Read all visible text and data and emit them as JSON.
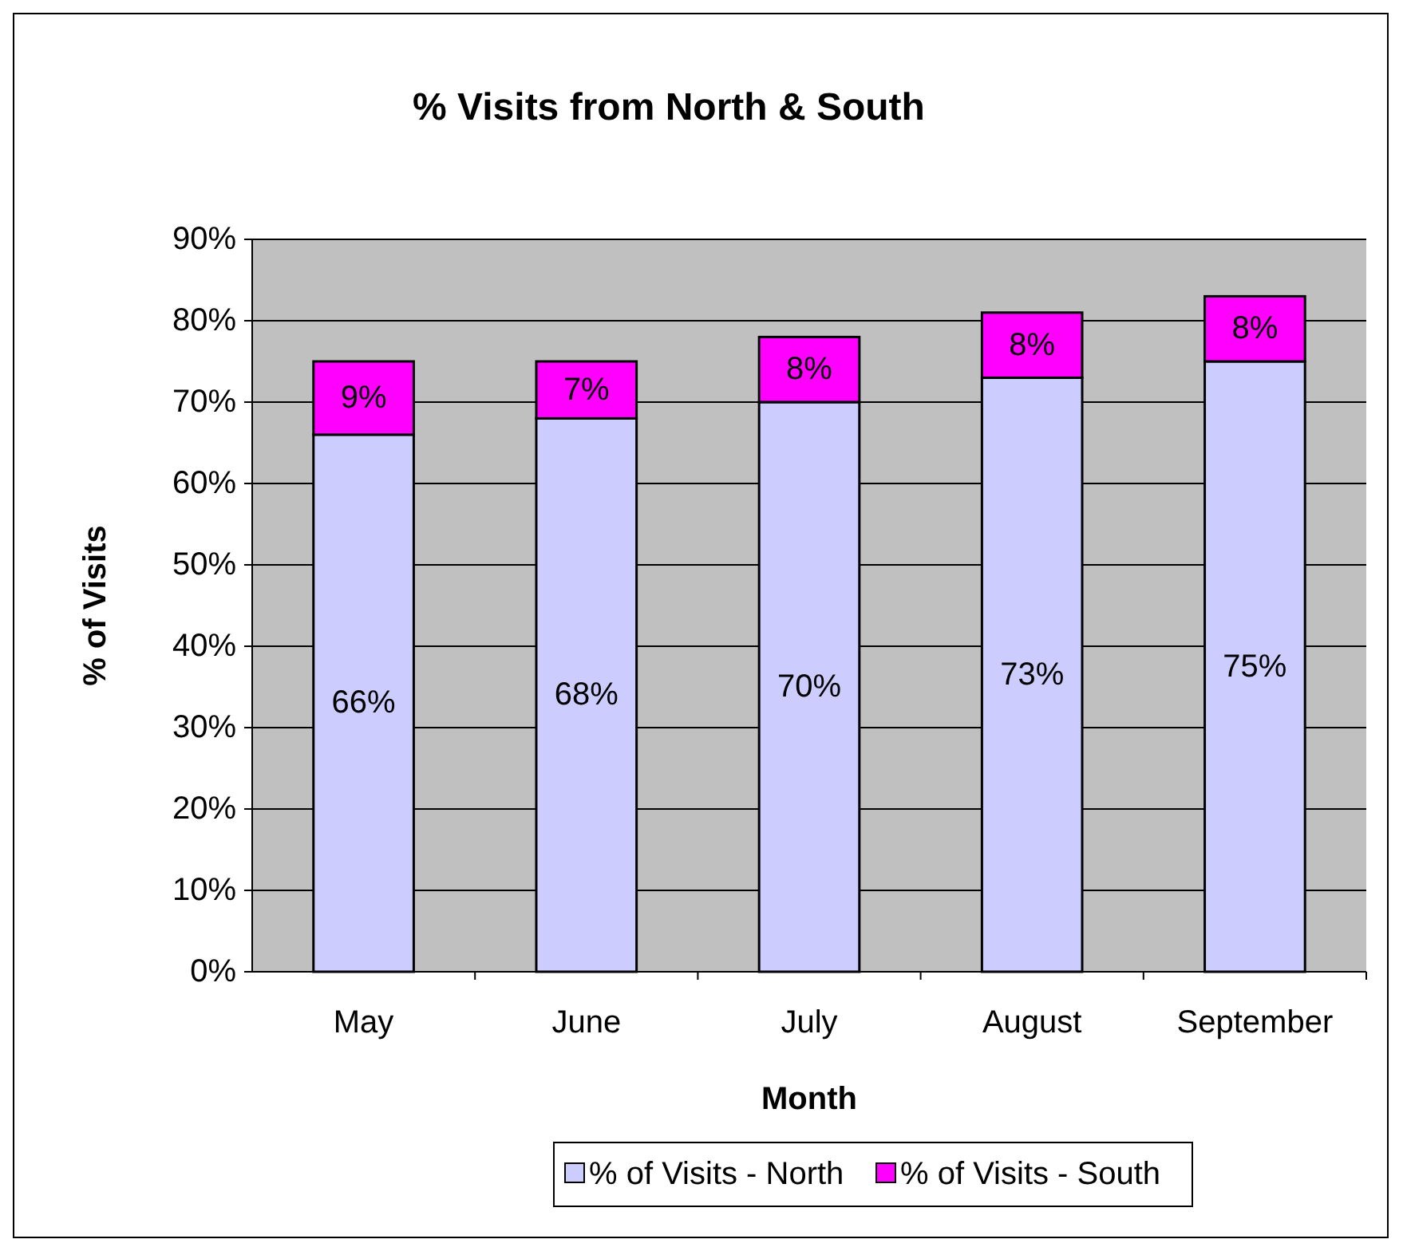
{
  "chart_data": {
    "type": "bar",
    "title": "% Visits from North & South",
    "xlabel": "Month",
    "ylabel": "% of Visits",
    "categories": [
      "May",
      "June",
      "July",
      "August",
      "September"
    ],
    "series": [
      {
        "name": "% of Visits - North",
        "color": "#ccccff",
        "values": [
          66,
          68,
          70,
          73,
          75
        ],
        "value_labels": [
          "66%",
          "68%",
          "70%",
          "73%",
          "75%"
        ]
      },
      {
        "name": "% of Visits - South",
        "color": "#ff00ff",
        "values": [
          9,
          7,
          8,
          8,
          8
        ],
        "value_labels": [
          "9%",
          "7%",
          "8%",
          "8%",
          "8%"
        ]
      }
    ],
    "stacked": true,
    "ylim": [
      0,
      90
    ],
    "yticks": [
      {
        "value": 0,
        "label": "0%"
      },
      {
        "value": 10,
        "label": "10%"
      },
      {
        "value": 20,
        "label": "20%"
      },
      {
        "value": 30,
        "label": "30%"
      },
      {
        "value": 40,
        "label": "40%"
      },
      {
        "value": 50,
        "label": "50%"
      },
      {
        "value": 60,
        "label": "60%"
      },
      {
        "value": 70,
        "label": "70%"
      },
      {
        "value": 80,
        "label": "80%"
      },
      {
        "value": 90,
        "label": "90%"
      }
    ],
    "grid": "y",
    "legend": "bottom"
  }
}
